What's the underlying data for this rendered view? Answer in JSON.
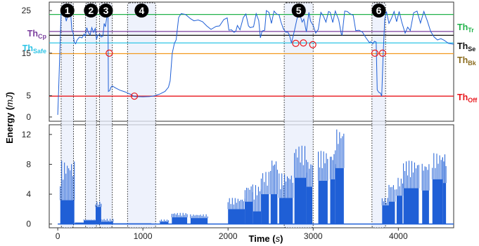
{
  "chart_data": [
    {
      "type": "line",
      "panel": "top",
      "ylabel": "Energy",
      "ylabel_unit": "mJ",
      "ylim": [
        -1,
        27
      ],
      "xlim": [
        -100,
        4650
      ],
      "y_ticks": [
        0,
        5,
        15,
        25
      ],
      "grid": false,
      "thresholds": [
        {
          "id": "tr",
          "main": "Th",
          "sub": "Tr",
          "value": 24.1,
          "color": "#21b24a"
        },
        {
          "id": "cp",
          "main": "Th",
          "sub": "Cp",
          "value": 20.1,
          "color": "#7b3f9e"
        },
        {
          "id": "se",
          "main": "Th",
          "sub": "Se",
          "value": 19.2,
          "color": "#111111"
        },
        {
          "id": "safe",
          "main": "Th",
          "sub": "Safe",
          "value": 17.4,
          "color": "#2ec4e6"
        },
        {
          "id": "bk",
          "main": "Th",
          "sub": "Bk",
          "value": 14.9,
          "color": "#f29a1f"
        },
        {
          "id": "off",
          "main": "Th",
          "sub": "Off",
          "value": 4.9,
          "color": "#e8161b"
        }
      ],
      "series": [
        {
          "color": "#1f5fd6",
          "points": [
            [
              0,
              0.5
            ],
            [
              10,
              6
            ],
            [
              40,
              24.8
            ],
            [
              80,
              24.6
            ],
            [
              100,
              22.5
            ],
            [
              120,
              24
            ],
            [
              150,
              24.8
            ],
            [
              165,
              20.5
            ],
            [
              180,
              19.8
            ],
            [
              195,
              17.5
            ],
            [
              210,
              17.2
            ],
            [
              225,
              18
            ],
            [
              255,
              18.8
            ],
            [
              285,
              18.6
            ],
            [
              310,
              19.5
            ],
            [
              325,
              19
            ],
            [
              340,
              21
            ],
            [
              360,
              19.8
            ],
            [
              380,
              19.3
            ],
            [
              400,
              21
            ],
            [
              420,
              19.9
            ],
            [
              440,
              20.8
            ],
            [
              455,
              18.2
            ],
            [
              470,
              19.2
            ],
            [
              495,
              19.4
            ],
            [
              510,
              18.8
            ],
            [
              530,
              19
            ],
            [
              545,
              22
            ],
            [
              560,
              21.2
            ],
            [
              575,
              23.3
            ],
            [
              590,
              25
            ],
            [
              595,
              6
            ],
            [
              610,
              6.2
            ],
            [
              625,
              7
            ],
            [
              640,
              7.3
            ],
            [
              680,
              6.8
            ],
            [
              730,
              6.3
            ],
            [
              790,
              5.9
            ],
            [
              860,
              5.3
            ],
            [
              900,
              4.8
            ],
            [
              1000,
              4.75
            ],
            [
              1080,
              4.8
            ],
            [
              1140,
              5
            ],
            [
              1200,
              5.4
            ],
            [
              1260,
              6
            ],
            [
              1300,
              7
            ],
            [
              1320,
              8.5
            ],
            [
              1345,
              15
            ],
            [
              1370,
              17.3
            ],
            [
              1390,
              18.1
            ],
            [
              1420,
              23.4
            ],
            [
              1450,
              24.3
            ],
            [
              1500,
              24.1
            ],
            [
              1560,
              23.1
            ],
            [
              1600,
              22.6
            ],
            [
              1650,
              22.8
            ],
            [
              1700,
              22.4
            ],
            [
              1750,
              21.4
            ],
            [
              1800,
              20.6
            ],
            [
              1860,
              21.3
            ],
            [
              1900,
              21.4
            ],
            [
              1950,
              22.9
            ],
            [
              1990,
              23.3
            ],
            [
              2010,
              20.4
            ],
            [
              2040,
              20.5
            ],
            [
              2070,
              19.9
            ],
            [
              2090,
              20.1
            ],
            [
              2110,
              21.5
            ],
            [
              2140,
              20.5
            ],
            [
              2180,
              23.4
            ],
            [
              2210,
              24.2
            ],
            [
              2240,
              21.4
            ],
            [
              2260,
              21
            ],
            [
              2300,
              21.2
            ],
            [
              2330,
              24.3
            ],
            [
              2360,
              22.7
            ],
            [
              2380,
              18.6
            ],
            [
              2400,
              20.2
            ],
            [
              2430,
              20.4
            ],
            [
              2450,
              25
            ],
            [
              2480,
              24.6
            ],
            [
              2510,
              22
            ],
            [
              2540,
              24.9
            ],
            [
              2570,
              24.2
            ],
            [
              2600,
              24
            ],
            [
              2620,
              22.4
            ],
            [
              2650,
              20.7
            ],
            [
              2680,
              19.9
            ],
            [
              2700,
              20
            ],
            [
              2720,
              19.3
            ],
            [
              2745,
              17.4
            ],
            [
              2780,
              20.3
            ],
            [
              2810,
              23.1
            ],
            [
              2840,
              24.4
            ],
            [
              2870,
              22.3
            ],
            [
              2890,
              23
            ],
            [
              2920,
              20
            ],
            [
              2950,
              24.6
            ],
            [
              2970,
              22.5
            ],
            [
              3000,
              21.5
            ],
            [
              3030,
              19.7
            ],
            [
              3060,
              20.6
            ],
            [
              3090,
              24.6
            ],
            [
              3120,
              23.7
            ],
            [
              3150,
              22.3
            ],
            [
              3180,
              24.8
            ],
            [
              3200,
              24.6
            ],
            [
              3230,
              22.2
            ],
            [
              3260,
              24.9
            ],
            [
              3300,
              22.8
            ],
            [
              3330,
              19.5
            ],
            [
              3340,
              19.3
            ],
            [
              3370,
              24.9
            ],
            [
              3400,
              24.8
            ],
            [
              3430,
              24.3
            ],
            [
              3470,
              23.9
            ],
            [
              3500,
              20.3
            ],
            [
              3540,
              20.4
            ],
            [
              3580,
              19.9
            ],
            [
              3620,
              18.6
            ],
            [
              3660,
              17.5
            ],
            [
              3680,
              17.7
            ],
            [
              3700,
              17.2
            ],
            [
              3720,
              17.8
            ],
            [
              3740,
              17.6
            ],
            [
              3752,
              6.4
            ],
            [
              3770,
              5.8
            ],
            [
              3790,
              5.6
            ],
            [
              3805,
              4.9
            ],
            [
              3820,
              13.7
            ],
            [
              3840,
              22.9
            ],
            [
              3860,
              24.8
            ],
            [
              3890,
              22
            ],
            [
              3920,
              23.2
            ],
            [
              3950,
              24.8
            ],
            [
              3980,
              22.4
            ],
            [
              4010,
              24.8
            ],
            [
              4040,
              22.3
            ],
            [
              4080,
              19.7
            ],
            [
              4110,
              21.1
            ],
            [
              4140,
              20.3
            ],
            [
              4180,
              24.5
            ],
            [
              4220,
              24.9
            ],
            [
              4260,
              22.1
            ],
            [
              4300,
              24.8
            ],
            [
              4340,
              22.6
            ],
            [
              4380,
              20.1
            ],
            [
              4420,
              18.8
            ],
            [
              4460,
              18.1
            ],
            [
              4500,
              18.4
            ],
            [
              4540,
              18
            ],
            [
              4590,
              17.3
            ],
            [
              4650,
              17.1
            ]
          ]
        }
      ],
      "markers": [
        {
          "x": 605,
          "y": 15
        },
        {
          "x": 900,
          "y": 4.9
        },
        {
          "x": 2795,
          "y": 17.3
        },
        {
          "x": 2885,
          "y": 17.4
        },
        {
          "x": 2995,
          "y": 17
        },
        {
          "x": 3725,
          "y": 15
        },
        {
          "x": 3815,
          "y": 15
        }
      ]
    },
    {
      "type": "bar",
      "panel": "bottom",
      "xlabel": "Time",
      "xlabel_unit": "s",
      "ylim": [
        -0.5,
        13.3
      ],
      "xlim": [
        -100,
        4650
      ],
      "y_ticks": [
        0,
        4,
        8,
        12
      ],
      "x_ticks": [
        0,
        1000,
        2000,
        3000,
        4000
      ],
      "color": "#1f5fd6",
      "segments": [
        {
          "x": [
            30,
            195
          ],
          "baseline": 0,
          "high": 8.5,
          "low": 3.2
        },
        {
          "x": [
            200,
            305
          ],
          "baseline": 0,
          "high": 0.2,
          "low": 0.2
        },
        {
          "x": [
            305,
            445
          ],
          "baseline": 0,
          "high": 0.6,
          "low": 0.5
        },
        {
          "x": [
            445,
            510
          ],
          "baseline": 0,
          "high": 3,
          "low": 2.3
        },
        {
          "x": [
            510,
            650
          ],
          "baseline": 0,
          "high": 0.7,
          "low": 0.3
        },
        {
          "x": [
            650,
            1100
          ],
          "baseline": 0,
          "high": 0.1,
          "low": 0.1
        },
        {
          "x": [
            1200,
            1300
          ],
          "baseline": 0,
          "high": 0.6,
          "low": 0.3
        },
        {
          "x": [
            1340,
            1520
          ],
          "baseline": 0,
          "high": 1.5,
          "low": 0.9
        },
        {
          "x": [
            1560,
            1760
          ],
          "baseline": 0,
          "high": 1.3,
          "low": 0.8
        },
        {
          "x": [
            2000,
            2200
          ],
          "baseline": 0,
          "high": 3.5,
          "low": 2
        },
        {
          "x": [
            2200,
            2290
          ],
          "baseline": 0,
          "high": 5.2,
          "low": 3
        },
        {
          "x": [
            2290,
            2390
          ],
          "baseline": 0,
          "high": 5.3,
          "low": 1.7
        },
        {
          "x": [
            2390,
            2480
          ],
          "baseline": 0,
          "high": 7,
          "low": 4
        },
        {
          "x": [
            2500,
            2580
          ],
          "baseline": 0,
          "high": 9,
          "low": 4
        },
        {
          "x": [
            2600,
            2760
          ],
          "baseline": 0,
          "high": 6.8,
          "low": 3.5
        },
        {
          "x": [
            2780,
            2920
          ],
          "baseline": 0,
          "high": 10.5,
          "low": 6.2
        },
        {
          "x": [
            2920,
            2990
          ],
          "baseline": 0,
          "high": 8.5,
          "low": 5
        },
        {
          "x": [
            3060,
            3170
          ],
          "baseline": 0,
          "high": 9.8,
          "low": 5.8
        },
        {
          "x": [
            3200,
            3260
          ],
          "baseline": 0,
          "high": 9.6,
          "low": 6
        },
        {
          "x": [
            3260,
            3360
          ],
          "baseline": 0,
          "high": 12.8,
          "low": 7.5
        },
        {
          "x": [
            3810,
            3890
          ],
          "baseline": 0,
          "high": 3.5,
          "low": 2.5
        },
        {
          "x": [
            3890,
            3960
          ],
          "baseline": 0,
          "high": 5.5,
          "low": 3
        },
        {
          "x": [
            3980,
            4050
          ],
          "baseline": 0,
          "high": 6.2,
          "low": 3.8
        },
        {
          "x": [
            4060,
            4240
          ],
          "baseline": 0,
          "high": 8.5,
          "low": 4.8
        },
        {
          "x": [
            4280,
            4360
          ],
          "baseline": 0,
          "high": 8.3,
          "low": 4.5
        },
        {
          "x": [
            4400,
            4520
          ],
          "baseline": 0,
          "high": 9.5,
          "low": 6
        },
        {
          "x": [
            4520,
            4560
          ],
          "baseline": 0,
          "high": 9.6,
          "low": 5.5
        }
      ]
    }
  ],
  "regions": [
    {
      "label": "1",
      "x": [
        40,
        185
      ]
    },
    {
      "label": "2",
      "x": [
        325,
        455
      ]
    },
    {
      "label": "3",
      "x": [
        490,
        640
      ]
    },
    {
      "label": "4",
      "x": [
        820,
        1150
      ]
    },
    {
      "label": "5",
      "x": [
        2660,
        3000
      ]
    },
    {
      "label": "6",
      "x": [
        3690,
        3850
      ]
    }
  ]
}
